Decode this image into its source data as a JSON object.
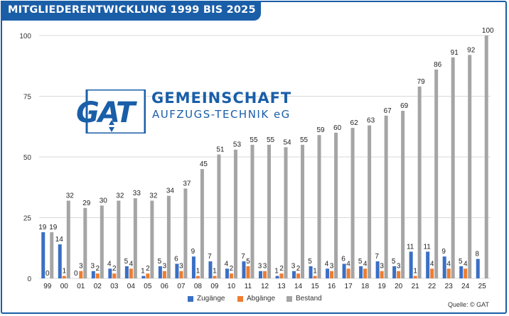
{
  "header": {
    "title": "MITGLIEDERENTWICKLUNG 1999 BIS 2025"
  },
  "logo": {
    "mark": "GAT",
    "line1": "GEMEINSCHAFT",
    "line2": "AUFZUGS-TECHNIK eG"
  },
  "source": "Quelle: © GAT",
  "colors": {
    "accent": "#1a5ea8",
    "zugaenge": "#3a6fc4",
    "abgaenge": "#ed7d31",
    "bestand": "#a5a5a5"
  },
  "chart_data": {
    "type": "bar",
    "title": "MITGLIEDERENTWICKLUNG 1999 BIS 2025",
    "xlabel": "",
    "ylabel": "",
    "ylim": [
      0,
      100
    ],
    "yticks": [
      0,
      25,
      50,
      75,
      100
    ],
    "grid": true,
    "legend_position": "bottom",
    "categories": [
      "99",
      "00",
      "01",
      "02",
      "03",
      "04",
      "05",
      "06",
      "07",
      "08",
      "09",
      "10",
      "11",
      "12",
      "13",
      "14",
      "15",
      "16",
      "17",
      "18",
      "19",
      "20",
      "21",
      "22",
      "23",
      "24",
      "25"
    ],
    "series": [
      {
        "name": "Zugänge",
        "color": "#3a6fc4",
        "values": [
          19,
          14,
          0,
          3,
          4,
          5,
          1,
          5,
          6,
          9,
          7,
          4,
          7,
          3,
          1,
          3,
          5,
          4,
          6,
          5,
          7,
          5,
          11,
          11,
          9,
          5,
          8
        ]
      },
      {
        "name": "Abgänge",
        "color": "#ed7d31",
        "values": [
          0,
          1,
          3,
          2,
          2,
          4,
          2,
          3,
          3,
          1,
          1,
          2,
          5,
          3,
          2,
          2,
          1,
          3,
          4,
          4,
          3,
          3,
          1,
          4,
          4,
          4,
          null
        ]
      },
      {
        "name": "Bestand",
        "color": "#a5a5a5",
        "values": [
          19,
          32,
          29,
          30,
          32,
          33,
          32,
          34,
          37,
          45,
          51,
          53,
          55,
          55,
          54,
          55,
          59,
          60,
          62,
          63,
          67,
          69,
          79,
          86,
          91,
          92,
          100
        ]
      }
    ]
  }
}
